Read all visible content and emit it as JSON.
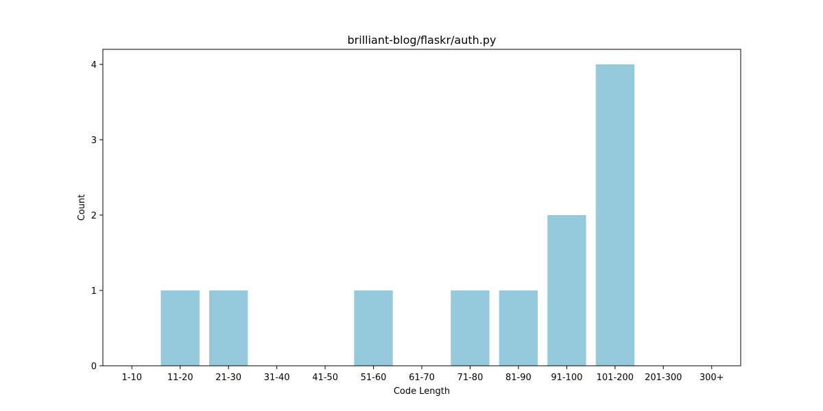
{
  "chart_data": {
    "type": "bar",
    "title": "brilliant-blog/flaskr/auth.py",
    "xlabel": "Code Length",
    "ylabel": "Count",
    "categories": [
      "1-10",
      "11-20",
      "21-30",
      "31-40",
      "41-50",
      "51-60",
      "61-70",
      "71-80",
      "81-90",
      "91-100",
      "101-200",
      "201-300",
      "300+"
    ],
    "values": [
      0,
      1,
      1,
      0,
      0,
      1,
      0,
      1,
      1,
      2,
      4,
      0,
      0
    ],
    "ylim": [
      0,
      4.2
    ],
    "yticks": [
      "0",
      "1",
      "2",
      "3",
      "4"
    ],
    "bar_color": "#96c9dc",
    "grid": false,
    "legend": "none"
  }
}
